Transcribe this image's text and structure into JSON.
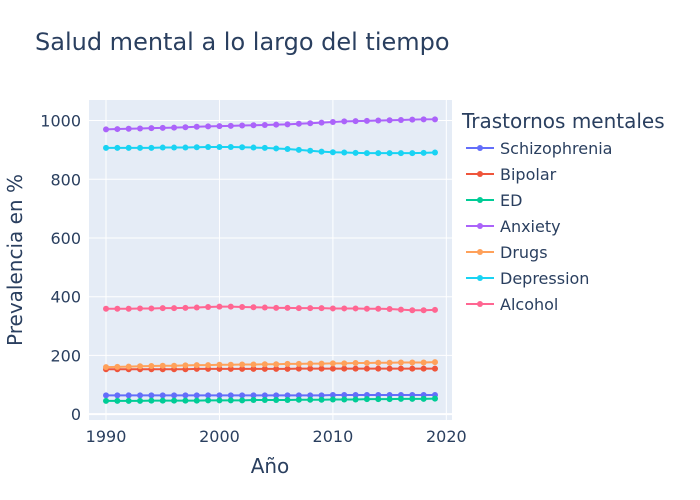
{
  "chart_data": {
    "type": "line",
    "title": "Salud mental a lo largo del tiempo",
    "xlabel": "Año",
    "ylabel": "Prevalencia en %",
    "legend_title": "Trastornos mentales",
    "legend_placement": "right",
    "grid": true,
    "xlim": [
      1988.5,
      2020.5
    ],
    "ylim": [
      -20,
      1070
    ],
    "x_ticks": [
      1990,
      2000,
      2010,
      2020
    ],
    "y_ticks": [
      0,
      200,
      400,
      600,
      800,
      1000
    ],
    "x": [
      1990,
      1991,
      1992,
      1993,
      1994,
      1995,
      1996,
      1997,
      1998,
      1999,
      2000,
      2001,
      2002,
      2003,
      2004,
      2005,
      2006,
      2007,
      2008,
      2009,
      2010,
      2011,
      2012,
      2013,
      2014,
      2015,
      2016,
      2017,
      2018,
      2019
    ],
    "series": [
      {
        "name": "Schizophrenia",
        "color": "#636efa",
        "values": [
          64,
          64,
          64,
          64,
          64,
          64,
          64,
          64,
          64,
          64,
          64,
          64,
          64,
          64,
          64,
          64,
          64,
          64,
          64,
          64,
          65,
          65,
          65,
          65,
          65,
          65,
          65,
          65,
          65,
          65
        ]
      },
      {
        "name": "Bipolar",
        "color": "#ef553b",
        "values": [
          153,
          153,
          153,
          153,
          153,
          153,
          153,
          153,
          154,
          154,
          154,
          154,
          154,
          154,
          154,
          154,
          154,
          155,
          155,
          155,
          155,
          155,
          155,
          155,
          155,
          155,
          155,
          155,
          155,
          155
        ]
      },
      {
        "name": "ED",
        "color": "#00cc96",
        "values": [
          45,
          45,
          45,
          45,
          46,
          46,
          46,
          46,
          46,
          47,
          47,
          47,
          47,
          48,
          48,
          48,
          48,
          49,
          49,
          49,
          50,
          50,
          50,
          51,
          51,
          51,
          52,
          52,
          52,
          53
        ]
      },
      {
        "name": "Anxiety",
        "color": "#ab63fa",
        "values": [
          970,
          971,
          972,
          973,
          974,
          975,
          976,
          977,
          979,
          980,
          981,
          982,
          983,
          984,
          985,
          986,
          987,
          989,
          991,
          993,
          995,
          997,
          998,
          999,
          1000,
          1001,
          1002,
          1003,
          1004,
          1004
        ]
      },
      {
        "name": "Drugs",
        "color": "#ffa15a",
        "values": [
          160,
          161,
          162,
          163,
          164,
          165,
          165,
          166,
          167,
          167,
          168,
          168,
          169,
          169,
          170,
          170,
          171,
          171,
          172,
          172,
          173,
          173,
          174,
          174,
          175,
          175,
          176,
          176,
          176,
          177
        ]
      },
      {
        "name": "Depression",
        "color": "#19d3f3",
        "values": [
          907,
          907,
          907,
          907,
          907,
          908,
          908,
          908,
          909,
          910,
          910,
          910,
          909,
          908,
          907,
          905,
          903,
          900,
          897,
          894,
          892,
          891,
          890,
          889,
          889,
          889,
          889,
          889,
          890,
          891
        ]
      },
      {
        "name": "Alcohol",
        "color": "#ff6692",
        "values": [
          359,
          359,
          359,
          360,
          360,
          361,
          361,
          362,
          363,
          365,
          366,
          366,
          365,
          364,
          363,
          362,
          362,
          361,
          361,
          361,
          360,
          360,
          360,
          359,
          359,
          358,
          356,
          354,
          354,
          355
        ]
      }
    ]
  }
}
